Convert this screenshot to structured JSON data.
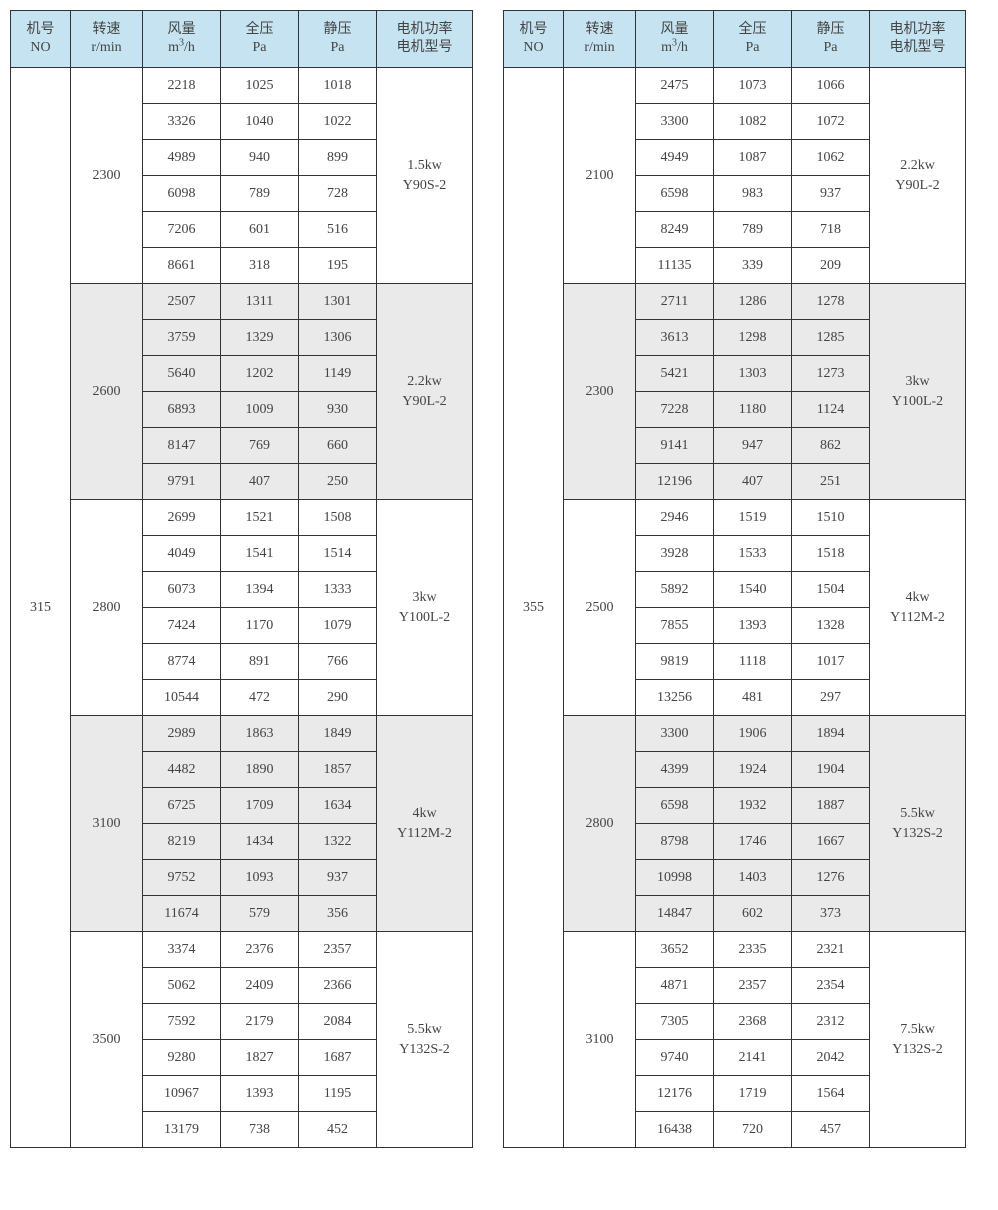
{
  "colors": {
    "header_bg": "#c5e3f0",
    "shade_bg": "#eaeaea",
    "border": "#333333",
    "text": "#444444",
    "page_bg": "#ffffff"
  },
  "headers": {
    "no_l1": "机号",
    "no_l2": "NO",
    "rpm_l1": "转速",
    "rpm_l2": "r/min",
    "q_l1": "风量",
    "q_l2_pre": "m",
    "q_l2_sup": "3",
    "q_l2_post": "/h",
    "tp_l1": "全压",
    "tp_l2": "Pa",
    "sp_l1": "静压",
    "sp_l2": "Pa",
    "mot_l1": "电机功率",
    "mot_l2": "电机型号"
  },
  "tables": [
    {
      "model_no": "315",
      "groups": [
        {
          "rpm": "2300",
          "motor_power": "1.5kw",
          "motor_model": "Y90S-2",
          "shaded": false,
          "rows": [
            {
              "q": "2218",
              "tp": "1025",
              "sp": "1018"
            },
            {
              "q": "3326",
              "tp": "1040",
              "sp": "1022"
            },
            {
              "q": "4989",
              "tp": "940",
              "sp": "899"
            },
            {
              "q": "6098",
              "tp": "789",
              "sp": "728"
            },
            {
              "q": "7206",
              "tp": "601",
              "sp": "516"
            },
            {
              "q": "8661",
              "tp": "318",
              "sp": "195"
            }
          ]
        },
        {
          "rpm": "2600",
          "motor_power": "2.2kw",
          "motor_model": "Y90L-2",
          "shaded": true,
          "rows": [
            {
              "q": "2507",
              "tp": "1311",
              "sp": "1301"
            },
            {
              "q": "3759",
              "tp": "1329",
              "sp": "1306"
            },
            {
              "q": "5640",
              "tp": "1202",
              "sp": "1149"
            },
            {
              "q": "6893",
              "tp": "1009",
              "sp": "930"
            },
            {
              "q": "8147",
              "tp": "769",
              "sp": "660"
            },
            {
              "q": "9791",
              "tp": "407",
              "sp": "250"
            }
          ]
        },
        {
          "rpm": "2800",
          "motor_power": "3kw",
          "motor_model": "Y100L-2",
          "shaded": false,
          "rows": [
            {
              "q": "2699",
              "tp": "1521",
              "sp": "1508"
            },
            {
              "q": "4049",
              "tp": "1541",
              "sp": "1514"
            },
            {
              "q": "6073",
              "tp": "1394",
              "sp": "1333"
            },
            {
              "q": "7424",
              "tp": "1170",
              "sp": "1079"
            },
            {
              "q": "8774",
              "tp": "891",
              "sp": "766"
            },
            {
              "q": "10544",
              "tp": "472",
              "sp": "290"
            }
          ]
        },
        {
          "rpm": "3100",
          "motor_power": "4kw",
          "motor_model": "Y112M-2",
          "shaded": true,
          "rows": [
            {
              "q": "2989",
              "tp": "1863",
              "sp": "1849"
            },
            {
              "q": "4482",
              "tp": "1890",
              "sp": "1857"
            },
            {
              "q": "6725",
              "tp": "1709",
              "sp": "1634"
            },
            {
              "q": "8219",
              "tp": "1434",
              "sp": "1322"
            },
            {
              "q": "9752",
              "tp": "1093",
              "sp": "937"
            },
            {
              "q": "11674",
              "tp": "579",
              "sp": "356"
            }
          ]
        },
        {
          "rpm": "3500",
          "motor_power": "5.5kw",
          "motor_model": "Y132S-2",
          "shaded": false,
          "rows": [
            {
              "q": "3374",
              "tp": "2376",
              "sp": "2357"
            },
            {
              "q": "5062",
              "tp": "2409",
              "sp": "2366"
            },
            {
              "q": "7592",
              "tp": "2179",
              "sp": "2084"
            },
            {
              "q": "9280",
              "tp": "1827",
              "sp": "1687"
            },
            {
              "q": "10967",
              "tp": "1393",
              "sp": "1195"
            },
            {
              "q": "13179",
              "tp": "738",
              "sp": "452"
            }
          ]
        }
      ]
    },
    {
      "model_no": "355",
      "groups": [
        {
          "rpm": "2100",
          "motor_power": "2.2kw",
          "motor_model": "Y90L-2",
          "shaded": false,
          "rows": [
            {
              "q": "2475",
              "tp": "1073",
              "sp": "1066"
            },
            {
              "q": "3300",
              "tp": "1082",
              "sp": "1072"
            },
            {
              "q": "4949",
              "tp": "1087",
              "sp": "1062"
            },
            {
              "q": "6598",
              "tp": "983",
              "sp": "937"
            },
            {
              "q": "8249",
              "tp": "789",
              "sp": "718"
            },
            {
              "q": "11135",
              "tp": "339",
              "sp": "209"
            }
          ]
        },
        {
          "rpm": "2300",
          "motor_power": "3kw",
          "motor_model": "Y100L-2",
          "shaded": true,
          "rows": [
            {
              "q": "2711",
              "tp": "1286",
              "sp": "1278"
            },
            {
              "q": "3613",
              "tp": "1298",
              "sp": "1285"
            },
            {
              "q": "5421",
              "tp": "1303",
              "sp": "1273"
            },
            {
              "q": "7228",
              "tp": "1180",
              "sp": "1124"
            },
            {
              "q": "9141",
              "tp": "947",
              "sp": "862"
            },
            {
              "q": "12196",
              "tp": "407",
              "sp": "251"
            }
          ]
        },
        {
          "rpm": "2500",
          "motor_power": "4kw",
          "motor_model": "Y112M-2",
          "shaded": false,
          "rows": [
            {
              "q": "2946",
              "tp": "1519",
              "sp": "1510"
            },
            {
              "q": "3928",
              "tp": "1533",
              "sp": "1518"
            },
            {
              "q": "5892",
              "tp": "1540",
              "sp": "1504"
            },
            {
              "q": "7855",
              "tp": "1393",
              "sp": "1328"
            },
            {
              "q": "9819",
              "tp": "1118",
              "sp": "1017"
            },
            {
              "q": "13256",
              "tp": "481",
              "sp": "297"
            }
          ]
        },
        {
          "rpm": "2800",
          "motor_power": "5.5kw",
          "motor_model": "Y132S-2",
          "shaded": true,
          "rows": [
            {
              "q": "3300",
              "tp": "1906",
              "sp": "1894"
            },
            {
              "q": "4399",
              "tp": "1924",
              "sp": "1904"
            },
            {
              "q": "6598",
              "tp": "1932",
              "sp": "1887"
            },
            {
              "q": "8798",
              "tp": "1746",
              "sp": "1667"
            },
            {
              "q": "10998",
              "tp": "1403",
              "sp": "1276"
            },
            {
              "q": "14847",
              "tp": "602",
              "sp": "373"
            }
          ]
        },
        {
          "rpm": "3100",
          "motor_power": "7.5kw",
          "motor_model": "Y132S-2",
          "shaded": false,
          "rows": [
            {
              "q": "3652",
              "tp": "2335",
              "sp": "2321"
            },
            {
              "q": "4871",
              "tp": "2357",
              "sp": "2354"
            },
            {
              "q": "7305",
              "tp": "2368",
              "sp": "2312"
            },
            {
              "q": "9740",
              "tp": "2141",
              "sp": "2042"
            },
            {
              "q": "12176",
              "tp": "1719",
              "sp": "1564"
            },
            {
              "q": "16438",
              "tp": "720",
              "sp": "457"
            }
          ]
        }
      ]
    }
  ]
}
